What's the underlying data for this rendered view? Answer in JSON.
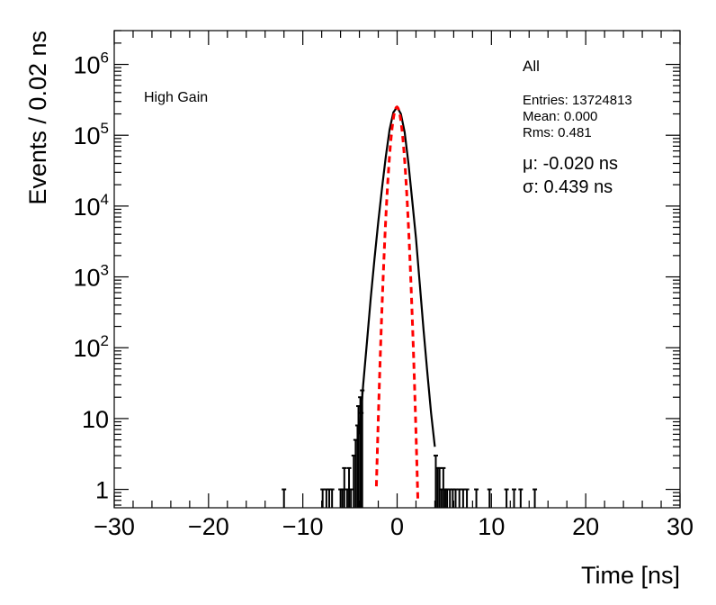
{
  "chart_data": {
    "type": "histogram",
    "xlabel": "Time [ns]",
    "ylabel": "Events / 0.02 ns",
    "xlim": [
      -30,
      30
    ],
    "ylim_log": [
      0.55,
      3000000
    ],
    "yscale": "log",
    "grid": false,
    "x_ticks": [
      {
        "value": -30,
        "label": "−30"
      },
      {
        "value": -20,
        "label": "−20"
      },
      {
        "value": -10,
        "label": "−10"
      },
      {
        "value": 0,
        "label": "0"
      },
      {
        "value": 10,
        "label": "10"
      },
      {
        "value": 20,
        "label": "20"
      },
      {
        "value": 30,
        "label": "30"
      }
    ],
    "y_ticks": [
      {
        "value": 1,
        "base": "1",
        "exp": ""
      },
      {
        "value": 10,
        "base": "10",
        "exp": ""
      },
      {
        "value": 100,
        "base": "10",
        "exp": "2"
      },
      {
        "value": 1000,
        "base": "10",
        "exp": "3"
      },
      {
        "value": 10000,
        "base": "10",
        "exp": "4"
      },
      {
        "value": 100000,
        "base": "10",
        "exp": "5"
      },
      {
        "value": 1000000,
        "base": "10",
        "exp": "6"
      }
    ],
    "annotation": "High Gain",
    "stats": {
      "title": "All",
      "entries": "Entries: 13724813",
      "mean": "Mean: 0.000",
      "rms": "Rms: 0.481"
    },
    "fit": {
      "mu_label": "μ: -0.020 ns",
      "sigma_label": "σ: 0.439 ns",
      "mu": -0.02,
      "sigma": 0.439,
      "peak": 250000,
      "x_range": [
        -2.2,
        2.2
      ],
      "color": "#ff0000"
    },
    "histogram_core": [
      [
        -4.0,
        6
      ],
      [
        -3.6,
        30
      ],
      [
        -3.2,
        120
      ],
      [
        -2.8,
        500
      ],
      [
        -2.4,
        1800
      ],
      [
        -2.0,
        6000
      ],
      [
        -1.6,
        18000
      ],
      [
        -1.2,
        50000
      ],
      [
        -0.8,
        120000
      ],
      [
        -0.4,
        210000
      ],
      [
        0.0,
        250000
      ],
      [
        0.4,
        200000
      ],
      [
        0.8,
        110000
      ],
      [
        1.2,
        40000
      ],
      [
        1.6,
        12000
      ],
      [
        2.0,
        3500
      ],
      [
        2.4,
        800
      ],
      [
        2.8,
        180
      ],
      [
        3.2,
        45
      ],
      [
        3.6,
        12
      ],
      [
        4.0,
        4
      ]
    ],
    "histogram_spikes": [
      [
        -12.0,
        1
      ],
      [
        -7.9,
        1
      ],
      [
        -7.5,
        1
      ],
      [
        -7.2,
        1
      ],
      [
        -6.9,
        1
      ],
      [
        -6.0,
        1
      ],
      [
        -5.8,
        1
      ],
      [
        -5.6,
        2
      ],
      [
        -5.3,
        1
      ],
      [
        -5.1,
        2
      ],
      [
        -4.9,
        1
      ],
      [
        -4.6,
        3
      ],
      [
        -4.4,
        5
      ],
      [
        -4.2,
        8
      ],
      [
        -4.1,
        15
      ],
      [
        -3.9,
        20
      ],
      [
        -3.8,
        12
      ],
      [
        -3.7,
        25
      ],
      [
        4.1,
        3
      ],
      [
        4.3,
        2
      ],
      [
        4.5,
        2
      ],
      [
        4.7,
        1
      ],
      [
        4.9,
        2
      ],
      [
        5.1,
        1
      ],
      [
        5.3,
        1
      ],
      [
        5.6,
        1
      ],
      [
        5.9,
        1
      ],
      [
        6.2,
        1
      ],
      [
        6.6,
        1
      ],
      [
        7.0,
        1
      ],
      [
        7.4,
        1
      ],
      [
        8.4,
        1
      ],
      [
        9.8,
        1
      ],
      [
        11.6,
        1
      ],
      [
        12.4,
        1
      ],
      [
        13.1,
        1
      ],
      [
        14.6,
        1
      ]
    ],
    "line_color": "#000000"
  }
}
